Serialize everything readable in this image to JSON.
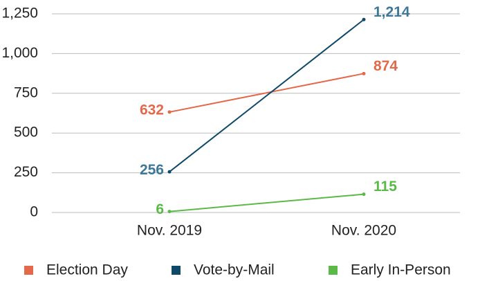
{
  "chart_data": {
    "type": "line",
    "categories": [
      "Nov. 2019",
      "Nov. 2020"
    ],
    "series": [
      {
        "name": "Election Day",
        "color": "#e3694a",
        "values": [
          632,
          874
        ],
        "value_labels": [
          "632",
          "874"
        ]
      },
      {
        "name": "Vote-by-Mail",
        "color": "#0e4a68",
        "label_color": "#3d7896",
        "values": [
          256,
          1214
        ],
        "value_labels": [
          "256",
          "1,214"
        ]
      },
      {
        "name": "Early In-Person",
        "color": "#5ab947",
        "values": [
          6,
          115
        ],
        "value_labels": [
          "6",
          "115"
        ]
      }
    ],
    "ylim": [
      0,
      1250
    ],
    "yticks": [
      0,
      250,
      500,
      750,
      {
        "value": 1000,
        "label": "1,000"
      },
      {
        "value": 1250,
        "label": "1,250"
      }
    ],
    "grid": true,
    "legend": "bottom"
  }
}
